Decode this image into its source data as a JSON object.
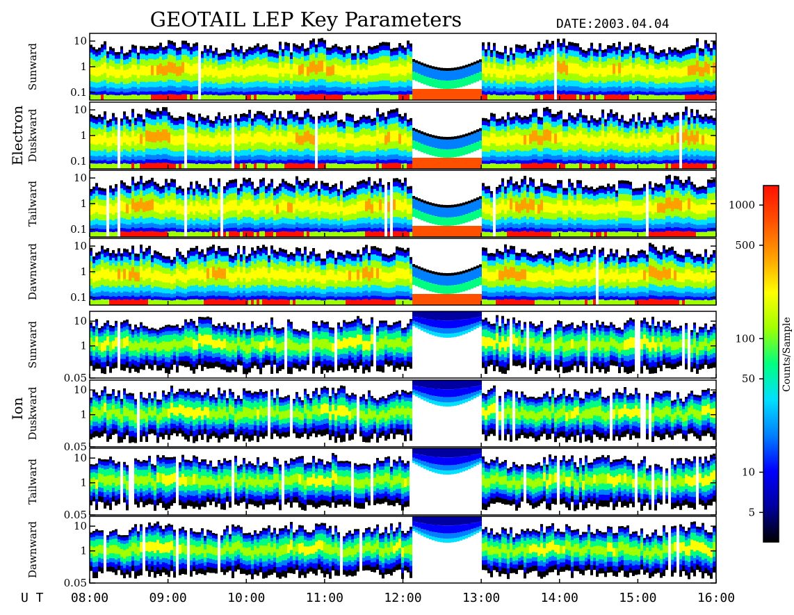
{
  "header": {
    "title": "GEOTAIL LEP Key Parameters",
    "date_label": "DATE:",
    "date_value": "2003.04.04"
  },
  "groups": [
    {
      "label": "Electron",
      "panels": [
        0,
        1,
        2,
        3
      ]
    },
    {
      "label": "Ion",
      "panels": [
        4,
        5,
        6,
        7
      ]
    }
  ],
  "colorbar": {
    "label": "Counts/Sample",
    "scale": "log",
    "range": [
      3,
      1400
    ],
    "ticks": [
      {
        "value": 1000,
        "label": "1000"
      },
      {
        "value": 500,
        "label": "500"
      },
      {
        "value": 100,
        "label": "100"
      },
      {
        "value": 50,
        "label": "50"
      },
      {
        "value": 10,
        "label": "10"
      },
      {
        "value": 5,
        "label": "5"
      }
    ],
    "colors": [
      "#000000",
      "#0000a0",
      "#0000ff",
      "#0080ff",
      "#00e0ff",
      "#00ff80",
      "#a0ff00",
      "#ffff00",
      "#ffa000",
      "#ff5000",
      "#ff1000"
    ]
  },
  "chart_data": {
    "type": "heatmap",
    "x_label": "U T",
    "x_ticks": [
      "08:00",
      "09:00",
      "10:00",
      "11:00",
      "12:00",
      "13:00",
      "14:00",
      "15:00",
      "16:00"
    ],
    "x_range_hours": [
      8,
      16
    ],
    "panels": [
      {
        "group": "Electron",
        "direction": "Sunward",
        "y_scale": "log",
        "y_range": [
          0.05,
          20
        ],
        "y_ticks": [
          "10",
          "1",
          "0.1"
        ],
        "y_tick_values": [
          10,
          1,
          0.1
        ]
      },
      {
        "group": "Electron",
        "direction": "Duskward",
        "y_scale": "log",
        "y_range": [
          0.05,
          20
        ],
        "y_ticks": [
          "10",
          "1",
          "0.1"
        ],
        "y_tick_values": [
          10,
          1,
          0.1
        ]
      },
      {
        "group": "Electron",
        "direction": "Tailward",
        "y_scale": "log",
        "y_range": [
          0.05,
          20
        ],
        "y_ticks": [
          "10",
          "1",
          "0.1"
        ],
        "y_tick_values": [
          10,
          1,
          0.1
        ]
      },
      {
        "group": "Electron",
        "direction": "Dawnward",
        "y_scale": "log",
        "y_range": [
          0.05,
          20
        ],
        "y_ticks": [
          "10",
          "1",
          "0.1"
        ],
        "y_tick_values": [
          10,
          1,
          0.1
        ]
      },
      {
        "group": "Ion",
        "direction": "Sunward",
        "y_scale": "log",
        "y_range": [
          0.05,
          25
        ],
        "y_ticks": [
          "10",
          "1",
          "0.05"
        ],
        "y_tick_values": [
          10,
          1,
          0.05
        ]
      },
      {
        "group": "Ion",
        "direction": "Duskward",
        "y_scale": "log",
        "y_range": [
          0.05,
          25
        ],
        "y_ticks": [
          "10",
          "1",
          "0.05"
        ],
        "y_tick_values": [
          10,
          1,
          0.05
        ]
      },
      {
        "group": "Ion",
        "direction": "Tailward",
        "y_scale": "log",
        "y_range": [
          0.05,
          25
        ],
        "y_ticks": [
          "10",
          "1",
          "0.05"
        ],
        "y_tick_values": [
          10,
          1,
          0.05
        ]
      },
      {
        "group": "Ion",
        "direction": "Dawnward",
        "y_scale": "log",
        "y_range": [
          0.05,
          25
        ],
        "y_ticks": [
          "10",
          "1",
          "0.05"
        ],
        "y_tick_values": [
          10,
          1,
          0.05
        ]
      }
    ],
    "data_gap_hours": [
      12.1,
      13.0
    ]
  }
}
